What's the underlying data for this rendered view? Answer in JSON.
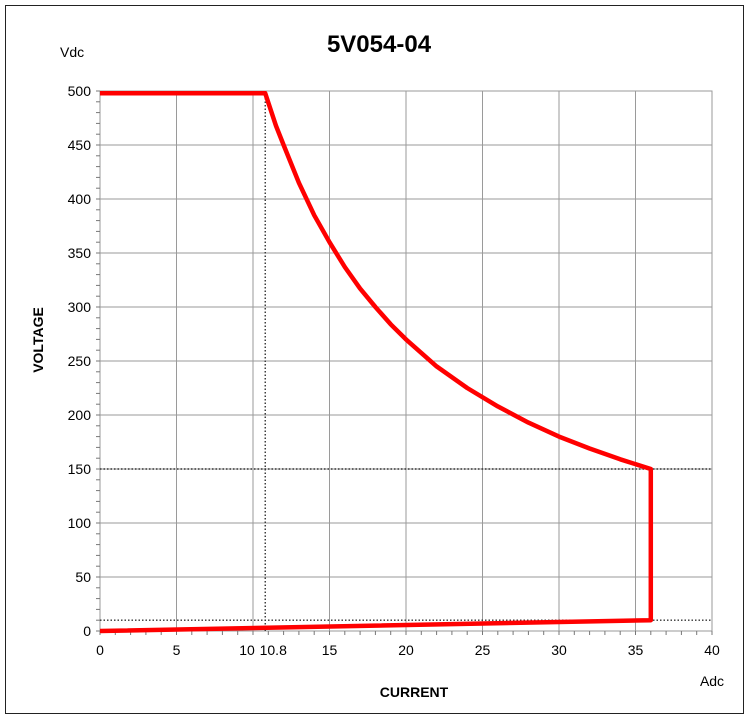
{
  "chart_data": {
    "type": "line",
    "title": "5V054-04",
    "xlabel": "CURRENT",
    "ylabel": "VOLTAGE",
    "x_unit": "Adc",
    "y_unit": "Vdc",
    "xlim": [
      0,
      40
    ],
    "ylim": [
      0,
      500
    ],
    "x_ticks": [
      "0",
      "5",
      "10",
      "10.8",
      "15",
      "20",
      "25",
      "30",
      "35",
      "40"
    ],
    "x_tick_values": [
      0,
      5,
      10,
      10.8,
      15,
      20,
      25,
      30,
      35,
      40
    ],
    "y_ticks": [
      "0",
      "50",
      "100",
      "150",
      "200",
      "250",
      "300",
      "350",
      "400",
      "450",
      "500"
    ],
    "y_tick_values": [
      0,
      50,
      100,
      150,
      200,
      250,
      300,
      350,
      400,
      450,
      500
    ],
    "grid": true,
    "colors": {
      "series": "#ff0000",
      "grid": "#9a9a9a",
      "reference": "#333333"
    },
    "series": [
      {
        "points": [
          [
            0,
            498
          ],
          [
            10.8,
            498
          ],
          [
            11.5,
            468
          ],
          [
            12,
            450
          ],
          [
            13,
            415
          ],
          [
            14,
            385
          ],
          [
            15,
            360
          ],
          [
            16,
            337
          ],
          [
            17,
            317
          ],
          [
            18,
            300
          ],
          [
            19,
            284
          ],
          [
            20,
            270
          ],
          [
            22,
            245
          ],
          [
            24,
            225
          ],
          [
            26,
            208
          ],
          [
            28,
            193
          ],
          [
            30,
            180
          ],
          [
            32,
            169
          ],
          [
            34,
            159
          ],
          [
            36,
            150
          ],
          [
            36,
            10
          ],
          [
            18,
            5
          ],
          [
            0,
            0
          ]
        ]
      }
    ],
    "reference_lines": [
      {
        "axis": "x",
        "value": 10.8
      },
      {
        "axis": "y",
        "value": 150
      },
      {
        "axis": "y",
        "value": 10
      }
    ]
  }
}
